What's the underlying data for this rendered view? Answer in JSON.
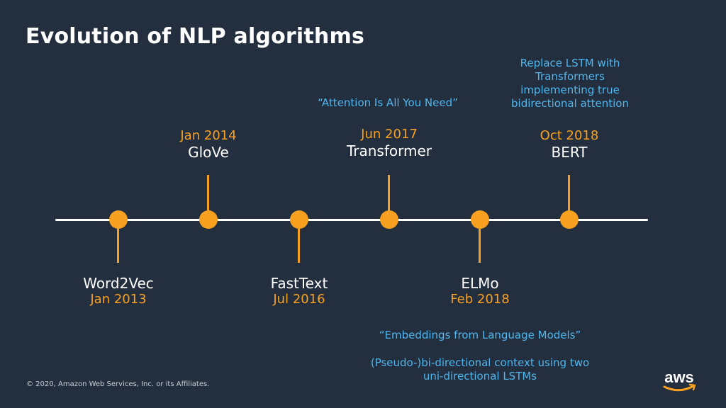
{
  "title": "Evolution of NLP algorithms",
  "milestones": [
    {
      "name": "Word2Vec",
      "date": "Jan 2013"
    },
    {
      "name": "GloVe",
      "date": "Jan 2014"
    },
    {
      "name": "FastText",
      "date": "Jul 2016"
    },
    {
      "name": "Transformer",
      "date": "Jun 2017"
    },
    {
      "name": "ELMo",
      "date": "Feb 2018"
    },
    {
      "name": "BERT",
      "date": "Oct 2018"
    }
  ],
  "notes": {
    "transformer": "“Attention Is All You Need”",
    "bert": "Replace LSTM with Transformers implementing true bidirectional attention",
    "elmo_title": "“Embeddings from Language Models”",
    "elmo_desc": "(Pseudo-)bi-directional context using two uni-directional LSTMs"
  },
  "copyright": "© 2020, Amazon Web Services, Inc. or its Affiliates.",
  "logo": "aws",
  "colors": {
    "background": "#232f3e",
    "accent": "#f8a01f",
    "note": "#4fb6ee",
    "text": "#ffffff"
  }
}
